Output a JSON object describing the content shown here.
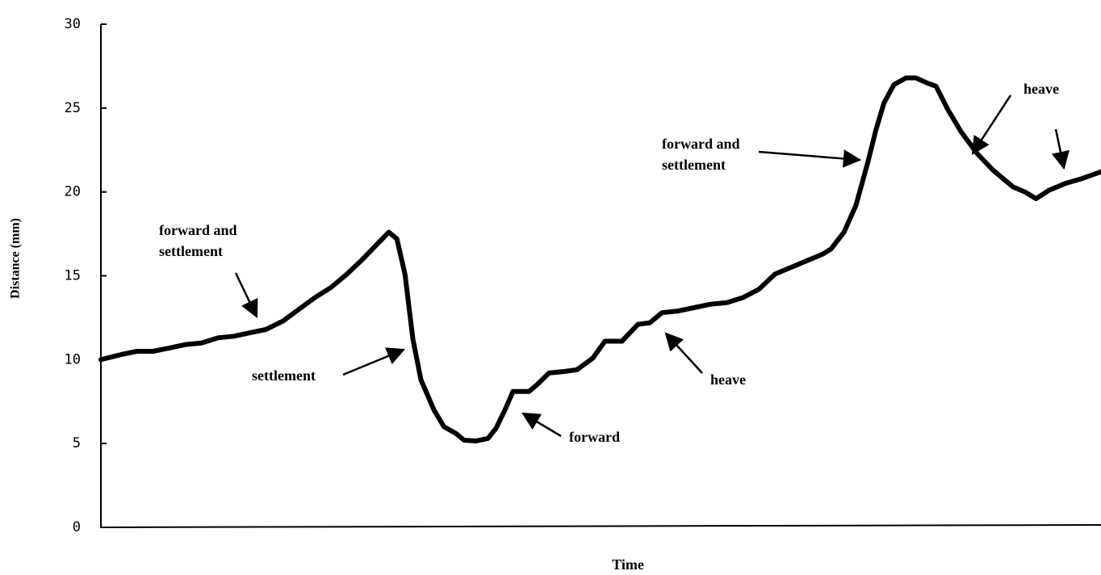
{
  "chart_data": {
    "type": "line",
    "x_label": "Time",
    "y_label": "Distance (mm)",
    "x": [
      0,
      2.0,
      3.6,
      5.2,
      6.9,
      8.5,
      10.1,
      11.7,
      13.3,
      14.9,
      16.5,
      18.2,
      19.8,
      21.4,
      23.0,
      24.6,
      26.2,
      27.8,
      28.8,
      29.6,
      30.4,
      31.2,
      32.0,
      33.3,
      34.3,
      35.5,
      36.3,
      37.5,
      38.7,
      39.5,
      40.4,
      41.2,
      42.8,
      43.6,
      44.8,
      46.4,
      47.6,
      49.2,
      50.4,
      52.1,
      53.7,
      54.9,
      56.1,
      57.7,
      59.3,
      60.9,
      62.6,
      64.2,
      65.8,
      67.4,
      69.0,
      70.6,
      72.2,
      73.0,
      74.3,
      75.5,
      76.7,
      77.5,
      78.3,
      79.3,
      80.5,
      81.5,
      82.6,
      83.5,
      84.7,
      86.0,
      87.6,
      89.2,
      91.2,
      92.4,
      93.5,
      94.8,
      96.4,
      98.1,
      100
    ],
    "series": [
      {
        "color": "#000000",
        "values": [
          10.0,
          10.3,
          10.5,
          10.5,
          10.7,
          10.9,
          11.0,
          11.3,
          11.4,
          11.6,
          11.8,
          12.3,
          13.0,
          13.7,
          14.3,
          15.1,
          16.0,
          17.0,
          17.6,
          17.2,
          15.1,
          11.2,
          8.8,
          7.0,
          6.0,
          5.6,
          5.2,
          5.15,
          5.3,
          5.9,
          7.0,
          8.1,
          8.1,
          8.5,
          9.2,
          9.3,
          9.4,
          10.1,
          11.1,
          11.1,
          12.1,
          12.2,
          12.8,
          12.9,
          13.1,
          13.3,
          13.4,
          13.7,
          14.2,
          15.1,
          15.5,
          15.9,
          16.3,
          16.6,
          17.6,
          19.2,
          21.8,
          23.7,
          25.3,
          26.4,
          26.8,
          26.8,
          26.5,
          26.3,
          24.9,
          23.6,
          22.3,
          21.3,
          20.3,
          20.0,
          19.6,
          20.1,
          20.5,
          20.8,
          21.2
        ]
      }
    ],
    "xlim": [
      0,
      100
    ],
    "ylim": [
      0,
      30
    ],
    "yticks": [
      0,
      5,
      10,
      15,
      20,
      25,
      30
    ],
    "grid": false,
    "annotations": [
      {
        "lines": [
          "forward and",
          "settlement"
        ]
      },
      {
        "lines": [
          "settlement"
        ]
      },
      {
        "lines": [
          "forward"
        ]
      },
      {
        "lines": [
          "heave"
        ]
      },
      {
        "lines": [
          "forward and",
          "settlement"
        ]
      },
      {
        "lines": [
          "heave"
        ]
      }
    ]
  }
}
